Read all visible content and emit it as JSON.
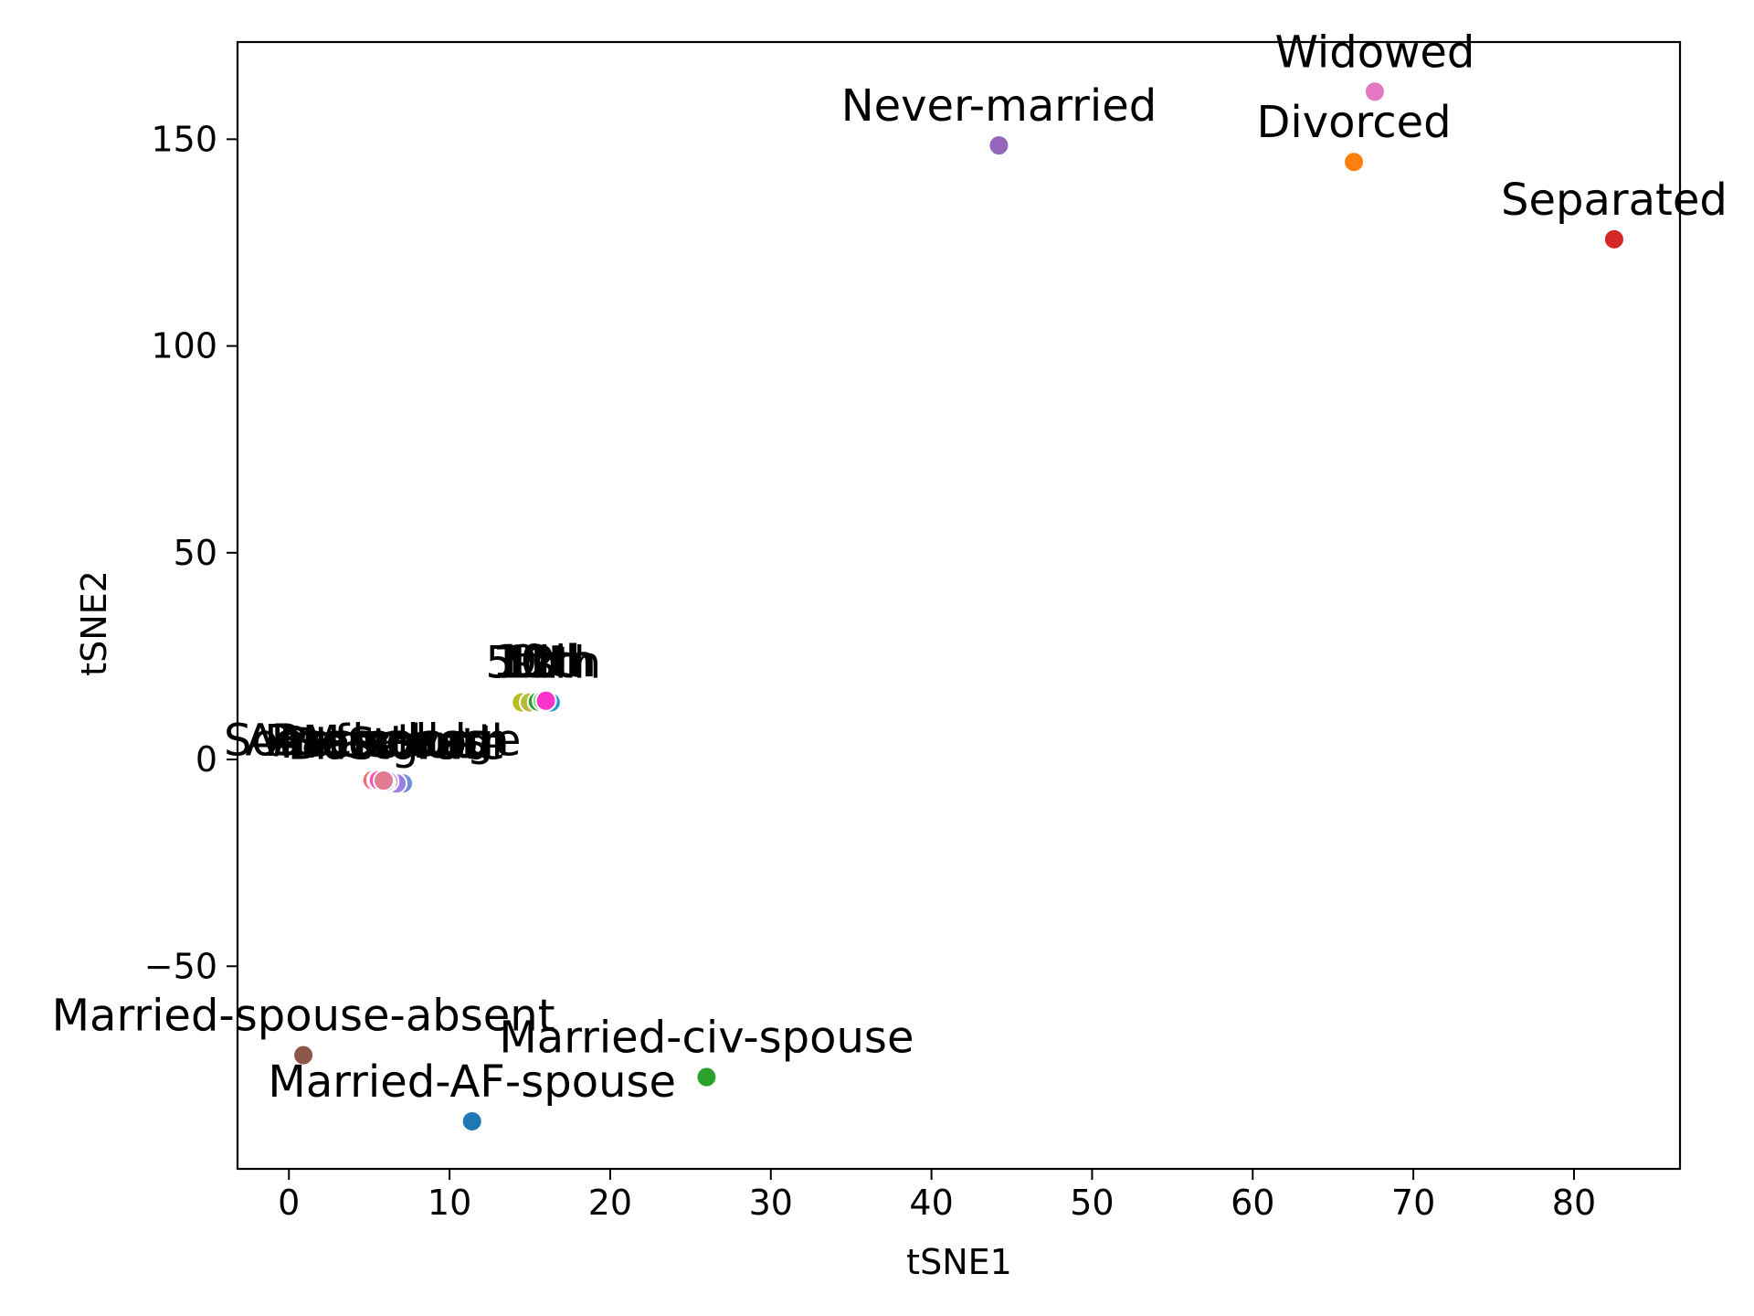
{
  "chart_data": {
    "type": "scatter",
    "xlabel": "tSNE1",
    "ylabel": "tSNE2",
    "xlim": [
      -3.2,
      86.6
    ],
    "ylim": [
      -99,
      173.5
    ],
    "x_ticks": [
      0,
      10,
      20,
      30,
      40,
      50,
      60,
      70,
      80
    ],
    "y_ticks": [
      -50,
      0,
      50,
      100,
      150
    ],
    "x_tick_labels": [
      "0",
      "10",
      "20",
      "30",
      "40",
      "50",
      "60",
      "70",
      "80"
    ],
    "y_tick_labels": [
      "−50",
      "0",
      "50",
      "100",
      "150"
    ],
    "grid": false,
    "points": [
      {
        "label": "Widowed",
        "x": 67.6,
        "y": 161.5,
        "color": "#e377c2"
      },
      {
        "label": "Never-married",
        "x": 44.2,
        "y": 148.5,
        "color": "#9467bd"
      },
      {
        "label": "Divorced",
        "x": 66.3,
        "y": 144.5,
        "color": "#ff7f0e"
      },
      {
        "label": "Separated",
        "x": 82.5,
        "y": 125.8,
        "color": "#d62728"
      },
      {
        "label": "Married-spouse-absent",
        "x": 0.9,
        "y": -71.5,
        "color": "#8c564b"
      },
      {
        "label": "Married-civ-spouse",
        "x": 26.0,
        "y": -76.8,
        "color": "#2ca02c"
      },
      {
        "label": "Married-AF-spouse",
        "x": 11.4,
        "y": -87.5,
        "color": "#1f77b4"
      }
    ],
    "cluster_points": [
      {
        "label": "5th",
        "x": 14.5,
        "y": 13.8,
        "color": "#bcbd22"
      },
      {
        "label": "7th",
        "x": 15.0,
        "y": 13.8,
        "color": "#b5bd3f"
      },
      {
        "label": "1st",
        "x": 15.5,
        "y": 14.0,
        "color": "#2ca02c"
      },
      {
        "label": "9th",
        "x": 16.0,
        "y": 14.0,
        "color": "#17becf"
      },
      {
        "label": "12th",
        "x": 16.3,
        "y": 13.8,
        "color": "#1f9bd8"
      },
      {
        "label": "10th",
        "x": 15.8,
        "y": 14.2,
        "color": "#5fd35f"
      },
      {
        "label": "11th",
        "x": 16.0,
        "y": 14.2,
        "color": "#ff33cc"
      },
      {
        "label": "Some-college",
        "x": 5.2,
        "y": -5.0,
        "color": "#f26b7a"
      },
      {
        "label": "Assoc-acdm",
        "x": 5.5,
        "y": -5.0,
        "color": "#f7a8b8"
      },
      {
        "label": "Assoc-voc",
        "x": 5.8,
        "y": -5.2,
        "color": "#e85a9a"
      },
      {
        "label": "HS-grad",
        "x": 7.1,
        "y": -5.8,
        "color": "#6f8fe0"
      },
      {
        "label": "Doctorate",
        "x": 6.7,
        "y": -5.8,
        "color": "#9a7fe6"
      },
      {
        "label": "Bachelors",
        "x": 5.6,
        "y": -5.0,
        "color": "#ff4fb0"
      },
      {
        "label": "Masters",
        "x": 6.2,
        "y": -5.3,
        "color": "#c9a0dc"
      },
      {
        "label": "Preschool",
        "x": 6.0,
        "y": -5.5,
        "color": "#7ec8e3"
      },
      {
        "label": "Prof-school",
        "x": 5.9,
        "y": -5.1,
        "color": "#e07b91"
      }
    ]
  }
}
